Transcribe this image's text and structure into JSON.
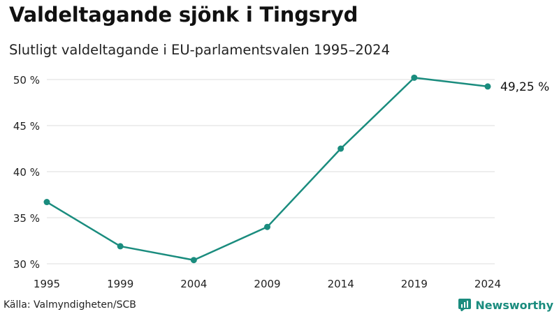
{
  "header": {
    "title": "Valdeltagande sjönk i Tingsryd",
    "subtitle": "Slutligt valdeltagande i EU-parlamentsvalen 1995–2024"
  },
  "chart_data": {
    "type": "line",
    "title": "Valdeltagande sjönk i Tingsryd",
    "subtitle": "Slutligt valdeltagande i EU-parlamentsvalen 1995–2024",
    "xlabel": "",
    "ylabel": "",
    "x": [
      "1995",
      "1999",
      "2004",
      "2009",
      "2014",
      "2019",
      "2024"
    ],
    "values": [
      36.7,
      31.9,
      30.4,
      34.0,
      42.5,
      50.2,
      49.25
    ],
    "ylim": [
      30,
      50
    ],
    "yticks": [
      30,
      35,
      40,
      45,
      50
    ],
    "ytick_labels": [
      "30 %",
      "35 %",
      "40 %",
      "45 %",
      "50 %"
    ],
    "grid": true,
    "series_color": "#1a8c7e",
    "end_label": "49,25 %",
    "legend": "none"
  },
  "footer": {
    "source": "Källa: Valmyndigheten/SCB",
    "brand": "Newsworthy",
    "brand_icon": "newsworthy-logo-icon",
    "brand_color": "#1a8c7e"
  }
}
